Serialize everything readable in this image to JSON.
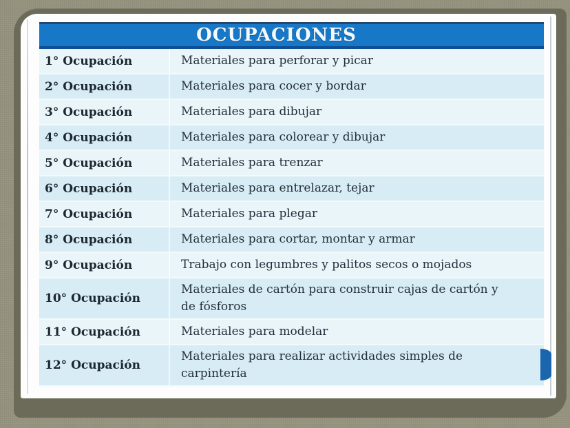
{
  "table": {
    "title": "OCUPACIONES",
    "rows": [
      {
        "label": "1° Ocupación",
        "value": "Materiales para perforar y picar"
      },
      {
        "label": "2° Ocupación",
        "value": "Materiales para cocer y bordar"
      },
      {
        "label": "3° Ocupación",
        "value": "Materiales para dibujar"
      },
      {
        "label": "4° Ocupación",
        "value": "Materiales para colorear y dibujar"
      },
      {
        "label": "5° Ocupación",
        "value": "Materiales para trenzar"
      },
      {
        "label": "6° Ocupación",
        "value": "Materiales para entrelazar, tejar"
      },
      {
        "label": "7° Ocupación",
        "value": "Materiales para plegar"
      },
      {
        "label": "8° Ocupación",
        "value": "Materiales para cortar, montar y armar"
      },
      {
        "label": "9° Ocupación",
        "value": "Trabajo con legumbres y palitos secos o mojados"
      },
      {
        "label": "10° Ocupación",
        "value": "Materiales de cartón para construir cajas de cartón y de fósforos"
      },
      {
        "label": "11° Ocupación",
        "value": "Materiales para modelar"
      },
      {
        "label": "12° Ocupación",
        "value": "Materiales para realizar actividades simples de carpintería"
      }
    ]
  },
  "icons": {
    "next": "half-circle-next-arrow"
  },
  "colors": {
    "background": "#95937e",
    "frame": "#6c6b59",
    "header_bg": "#1878c8",
    "header_border_top": "#27466c",
    "header_border_bottom": "#0f4e96",
    "row_odd": "#e9f5f9",
    "row_even": "#d7ecf4",
    "label_text": "#1b2630",
    "value_text": "#232f3a",
    "next_arrow": "#1b64ae"
  }
}
